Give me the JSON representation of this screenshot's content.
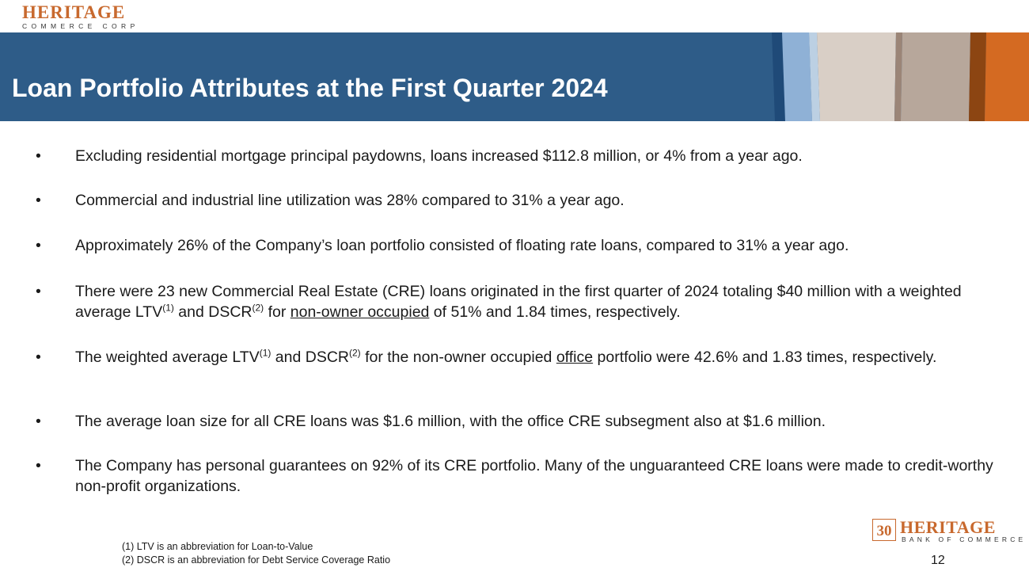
{
  "header_logo": {
    "name": "HERITAGE",
    "sub": "COMMERCE CORP"
  },
  "title": "Loan Portfolio Attributes at the First Quarter 2024",
  "bullet_char": "•",
  "bullets": {
    "b1": "Excluding residential mortgage principal paydowns, loans increased $112.8 million, or 4% from a year ago.",
    "b2": "Commercial and industrial line utilization was 28% compared to 31% a year ago.",
    "b3": "Approximately 26% of the Company’s loan portfolio consisted of floating rate loans, compared to 31% a year ago.",
    "b4": {
      "part1": "There were 23 new Commercial Real Estate (CRE) loans originated in the first quarter of 2024 totaling $40 million with a weighted average LTV",
      "sup1": "(1)",
      "part2": " and DSCR",
      "sup2": "(2)",
      "part3": " for ",
      "underline": "non-owner occupied",
      "part4": " of 51% and 1.84 times, respectively."
    },
    "b5": {
      "part1": "The weighted average LTV",
      "sup1": "(1)",
      "part2": " and DSCR",
      "sup2": "(2)",
      "part3": " for the non-owner occupied ",
      "underline": "office",
      "part4": " portfolio were 42.6% and 1.83 times, respectively."
    },
    "b6": "The average loan size for all CRE loans was $1.6 million, with the office CRE subsegment also at $1.6 million.",
    "b7": "The Company has personal guarantees on 92% of its CRE portfolio. Many of the unguaranteed CRE loans were made to credit-worthy non-profit organizations."
  },
  "footnotes": {
    "f1": "(1) LTV is an abbreviation for Loan-to-Value",
    "f2": "(2) DSCR is an abbreviation for Debt Service Coverage Ratio"
  },
  "footer_logo": {
    "badge": "30",
    "name": "HERITAGE",
    "sub": "BANK OF COMMERCE"
  },
  "page_number": "12",
  "colors": {
    "band": "#2e5c88",
    "accent": "#c8692e"
  }
}
